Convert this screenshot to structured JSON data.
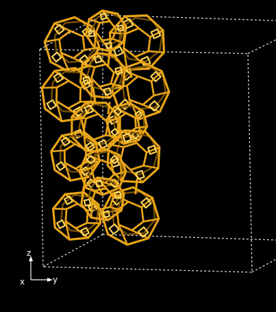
{
  "viewer": {
    "background": "#000000",
    "cell_line_color": "#d9d9d9",
    "framework_color": "#e8a418",
    "framework_shadow_color": "#7a5205",
    "framework_highlight_color": "#ffd45a"
  },
  "axes": {
    "x_label": "x",
    "y_label": "y",
    "z_label": "z",
    "color": "#ffffff"
  }
}
